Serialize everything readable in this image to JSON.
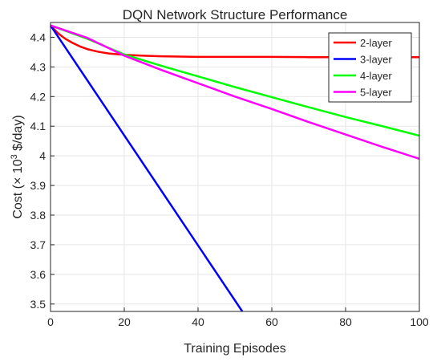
{
  "chart_data": {
    "type": "line",
    "title": "DQN Network Structure Performance",
    "xlabel": "Training Episodes",
    "ylabel": {
      "prefix": "Cost (× 10",
      "sup": "3",
      "suffix": " $/day)"
    },
    "xlim": [
      0,
      100
    ],
    "ylim": [
      3.475,
      4.45
    ],
    "xticks": [
      0,
      20,
      40,
      60,
      80,
      100
    ],
    "yticks": [
      3.5,
      3.6,
      3.7,
      3.8,
      3.9,
      4.0,
      4.1,
      4.2,
      4.3,
      4.4
    ],
    "yticklabels": [
      "3.5",
      "3.6",
      "3.7",
      "3.8",
      "3.9",
      "4",
      "4.1",
      "4.2",
      "4.3",
      "4.4"
    ],
    "grid": true,
    "legend_position": "top-right",
    "series": [
      {
        "name": "2-layer",
        "color": "#ff0000",
        "x": [
          0,
          2,
          4,
          6,
          8,
          10,
          13,
          16,
          20,
          25,
          30,
          35,
          40,
          50,
          60,
          70,
          80,
          90,
          100
        ],
        "y": [
          4.44,
          4.414,
          4.395,
          4.381,
          4.369,
          4.36,
          4.351,
          4.345,
          4.341,
          4.338,
          4.336,
          4.335,
          4.334,
          4.334,
          4.334,
          4.333,
          4.333,
          4.333,
          4.333
        ]
      },
      {
        "name": "3-layer",
        "color": "#0000ff",
        "x": [
          0,
          52
        ],
        "y": [
          4.44,
          3.475
        ]
      },
      {
        "name": "4-layer",
        "color": "#00ff00",
        "x": [
          0,
          10,
          20,
          30,
          40,
          50,
          60,
          70,
          80,
          90,
          100
        ],
        "y": [
          4.44,
          4.395,
          4.342,
          4.304,
          4.268,
          4.232,
          4.198,
          4.164,
          4.131,
          4.1,
          4.068
        ]
      },
      {
        "name": "5-layer",
        "color": "#ff00ff",
        "x": [
          0,
          10,
          20,
          30,
          40,
          50,
          60,
          70,
          80,
          90,
          100
        ],
        "y": [
          4.44,
          4.398,
          4.338,
          4.29,
          4.245,
          4.2,
          4.158,
          4.114,
          4.072,
          4.03,
          3.99
        ]
      }
    ]
  }
}
